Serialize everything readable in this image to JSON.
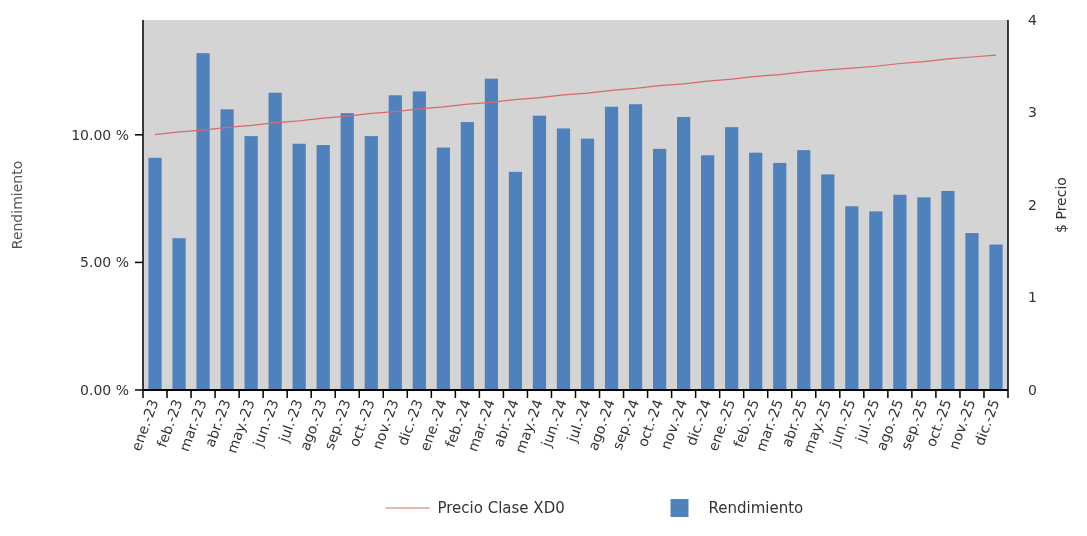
{
  "chart_data": {
    "type": "bar",
    "ylabel": "Rendimiento",
    "y2label": "$ Precio",
    "categories": [
      "ene.-23",
      "feb.-23",
      "mar.-23",
      "abr.-23",
      "may.-23",
      "jun.-23",
      "jul.-23",
      "ago.-23",
      "sep.-23",
      "oct.-23",
      "nov.-23",
      "dic.-23",
      "ene.-24",
      "feb.-24",
      "mar.-24",
      "abr.-24",
      "may.-24",
      "jun.-24",
      "jul.-24",
      "ago.-24",
      "sep.-24",
      "oct.-24",
      "nov.-24",
      "dic.-24",
      "ene.-25",
      "feb.-25",
      "mar.-25",
      "abr.-25",
      "may.-25",
      "jun.-25",
      "jul.-25",
      "ago.-25",
      "sep.-25",
      "oct.-25",
      "nov.-25",
      "dic.-25"
    ],
    "series": [
      {
        "name": "Precio Clase XD0",
        "type": "line",
        "axis": "y2",
        "color": "#d9686a",
        "values": [
          2.76,
          2.79,
          2.81,
          2.84,
          2.86,
          2.89,
          2.91,
          2.94,
          2.96,
          2.99,
          3.01,
          3.04,
          3.06,
          3.09,
          3.11,
          3.14,
          3.16,
          3.19,
          3.21,
          3.24,
          3.26,
          3.29,
          3.31,
          3.34,
          3.36,
          3.39,
          3.41,
          3.44,
          3.46,
          3.48,
          3.5,
          3.53,
          3.55,
          3.58,
          3.6,
          3.62
        ]
      },
      {
        "name": "Rendimiento",
        "color": "#4f81bd",
        "values": [
          9.1,
          5.95,
          13.2,
          11.0,
          9.95,
          11.65,
          9.65,
          9.6,
          10.85,
          9.95,
          11.55,
          11.7,
          9.5,
          10.5,
          12.2,
          8.55,
          10.75,
          10.25,
          9.85,
          11.1,
          11.2,
          9.45,
          10.7,
          9.2,
          10.3,
          9.3,
          8.9,
          9.4,
          8.45,
          7.2,
          7.0,
          7.65,
          7.55,
          7.8,
          6.15,
          5.7
        ]
      }
    ],
    "ylim": [
      0,
      14.5
    ],
    "yticks": [
      {
        "value": 0,
        "label": "0.00 %"
      },
      {
        "value": 5,
        "label": "5.00 %"
      },
      {
        "value": 10,
        "label": "10.00 %"
      }
    ],
    "y2lim": [
      0,
      4
    ],
    "y2ticks": [
      0,
      1,
      2,
      3,
      4
    ],
    "grid": false,
    "legend": "bottom"
  }
}
